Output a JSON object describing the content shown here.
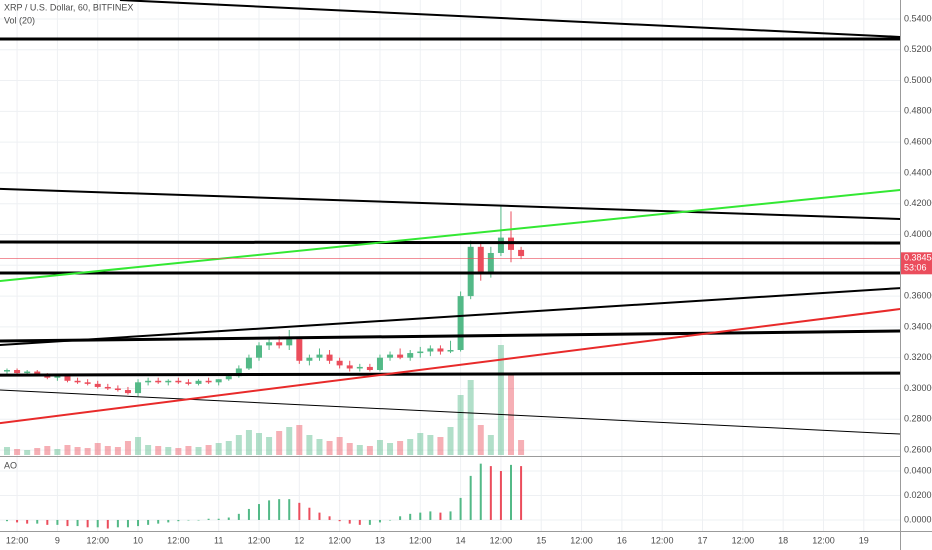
{
  "chart_data": [
    {
      "type": "candlestick",
      "title": "XRP / U.S. Dollar, 60, BITFINEX",
      "categories": [
        null,
        "12:00",
        null,
        null,
        null,
        "9",
        null,
        null,
        null,
        "12:00",
        null,
        null,
        null,
        "10",
        null,
        null,
        null,
        "12:00",
        null,
        null,
        null,
        "11",
        null,
        null,
        null,
        "12:00",
        null,
        null,
        null,
        "12",
        null,
        null,
        null,
        "12:00",
        null,
        null,
        null,
        "13",
        null,
        null,
        null,
        "12:00",
        null,
        null,
        null,
        "14",
        null,
        null,
        null,
        "12:00",
        null,
        null,
        null,
        "15",
        null,
        null,
        null,
        "12:00",
        null,
        null,
        null,
        "16",
        null,
        null,
        null,
        "12:00",
        null,
        null,
        null,
        "17",
        null,
        null,
        null,
        "12:00",
        null,
        null,
        null,
        "18",
        null,
        null,
        null,
        "12:00",
        null,
        null,
        null,
        "19",
        null,
        null
      ],
      "open": [
        0.311,
        0.312,
        0.31,
        0.311,
        0.309,
        0.307,
        0.308,
        0.305,
        0.304,
        0.303,
        0.301,
        0.3,
        0.299,
        0.297,
        0.304,
        0.305,
        0.304,
        0.305,
        0.304,
        0.303,
        0.305,
        0.304,
        0.306,
        0.308,
        0.313,
        0.32,
        0.328,
        0.33,
        0.328,
        0.332,
        0.318,
        0.32,
        0.322,
        0.318,
        0.315,
        0.313,
        0.314,
        0.312,
        0.32,
        0.322,
        0.32,
        0.323,
        0.324,
        0.326,
        0.324,
        0.325,
        0.36,
        0.392,
        0.375,
        0.388,
        0.398,
        0.39,
        null,
        null,
        null,
        null,
        null,
        null,
        null,
        null,
        null,
        null,
        null,
        null,
        null,
        null,
        null,
        null,
        null,
        null,
        null,
        null,
        null,
        null,
        null,
        null,
        null,
        null,
        null,
        null,
        null,
        null,
        null,
        null,
        null,
        null,
        null,
        null
      ],
      "high": [
        0.313,
        0.313,
        0.312,
        0.312,
        0.31,
        0.309,
        0.309,
        0.307,
        0.306,
        0.305,
        0.303,
        0.302,
        0.301,
        0.306,
        0.307,
        0.307,
        0.306,
        0.307,
        0.306,
        0.306,
        0.307,
        0.306,
        0.31,
        0.315,
        0.322,
        0.33,
        0.333,
        0.334,
        0.338,
        0.333,
        0.322,
        0.326,
        0.325,
        0.32,
        0.318,
        0.316,
        0.316,
        0.322,
        0.324,
        0.326,
        0.325,
        0.327,
        0.328,
        0.328,
        0.331,
        0.363,
        0.396,
        0.395,
        0.392,
        0.419,
        0.415,
        0.392,
        null,
        null,
        null,
        null,
        null,
        null,
        null,
        null,
        null,
        null,
        null,
        null,
        null,
        null,
        null,
        null,
        null,
        null,
        null,
        null,
        null,
        null,
        null,
        null,
        null,
        null,
        null,
        null,
        null,
        null,
        null,
        null,
        null,
        null,
        null,
        null
      ],
      "low": [
        0.309,
        0.309,
        0.308,
        0.308,
        0.306,
        0.305,
        0.304,
        0.303,
        0.302,
        0.3,
        0.299,
        0.298,
        0.296,
        0.295,
        0.302,
        0.303,
        0.302,
        0.303,
        0.302,
        0.302,
        0.303,
        0.302,
        0.305,
        0.307,
        0.312,
        0.318,
        0.325,
        0.326,
        0.325,
        0.316,
        0.315,
        0.318,
        0.316,
        0.313,
        0.311,
        0.311,
        0.311,
        0.311,
        0.318,
        0.319,
        0.318,
        0.32,
        0.321,
        0.322,
        0.323,
        0.324,
        0.358,
        0.37,
        0.372,
        0.386,
        0.382,
        0.384,
        null,
        null,
        null,
        null,
        null,
        null,
        null,
        null,
        null,
        null,
        null,
        null,
        null,
        null,
        null,
        null,
        null,
        null,
        null,
        null,
        null,
        null,
        null,
        null,
        null,
        null,
        null,
        null,
        null,
        null,
        null,
        null,
        null,
        null,
        null,
        null
      ],
      "close": [
        0.312,
        0.31,
        0.311,
        0.309,
        0.307,
        0.308,
        0.305,
        0.304,
        0.303,
        0.301,
        0.3,
        0.299,
        0.297,
        0.304,
        0.305,
        0.304,
        0.305,
        0.304,
        0.303,
        0.305,
        0.304,
        0.306,
        0.308,
        0.313,
        0.32,
        0.328,
        0.33,
        0.328,
        0.332,
        0.318,
        0.32,
        0.322,
        0.318,
        0.315,
        0.313,
        0.314,
        0.312,
        0.32,
        0.322,
        0.32,
        0.323,
        0.324,
        0.326,
        0.324,
        0.325,
        0.36,
        0.392,
        0.375,
        0.388,
        0.398,
        0.39,
        0.386,
        null,
        null,
        null,
        null,
        null,
        null,
        null,
        null,
        null,
        null,
        null,
        null,
        null,
        null,
        null,
        null,
        null,
        null,
        null,
        null,
        null,
        null,
        null,
        null,
        null,
        null,
        null,
        null,
        null,
        null,
        null,
        null,
        null,
        null,
        null,
        null
      ],
      "up_color": "#53b987",
      "down_color": "#eb4d5c",
      "ylim": [
        0.2568,
        0.5523
      ],
      "yticks": [
        {
          "value": 0.26,
          "label": "0.26000"
        },
        {
          "value": 0.28,
          "label": "0.28000"
        },
        {
          "value": 0.3,
          "label": "0.30000"
        },
        {
          "value": 0.32,
          "label": "0.32000"
        },
        {
          "value": 0.34,
          "label": "0.34000"
        },
        {
          "value": 0.36,
          "label": "0.36000"
        },
        {
          "value": 0.38,
          "label": "0.38000"
        },
        {
          "value": 0.4,
          "label": "0.40000"
        },
        {
          "value": 0.42,
          "label": "0.42000"
        },
        {
          "value": 0.44,
          "label": "0.44000"
        },
        {
          "value": 0.46,
          "label": "0.46000"
        },
        {
          "value": 0.48,
          "label": "0.48000"
        },
        {
          "value": 0.5,
          "label": "0.50000"
        },
        {
          "value": 0.52,
          "label": "0.52000"
        },
        {
          "value": 0.54,
          "label": "0.54000"
        }
      ],
      "trend_lines": [
        {
          "color": "#000000",
          "width": 2,
          "x": [
            11.2,
            88.6
          ],
          "y": [
            0.5523,
            0.5283
          ]
        },
        {
          "color": "#000000",
          "width": 3,
          "x": [
            -0.7,
            88.6
          ],
          "y": [
            0.527,
            0.527
          ]
        },
        {
          "color": "#000000",
          "width": 2,
          "x": [
            -0.7,
            88.6
          ],
          "y": [
            0.4296,
            0.4101
          ]
        },
        {
          "color": "#000000",
          "width": 3,
          "x": [
            -0.7,
            88.6
          ],
          "y": [
            0.3951,
            0.3945
          ]
        },
        {
          "color": "#000000",
          "width": 3,
          "x": [
            -0.7,
            88.6
          ],
          "y": [
            0.375,
            0.375
          ]
        },
        {
          "color": "#000000",
          "width": 2,
          "x": [
            -0.7,
            88.6
          ],
          "y": [
            0.3282,
            0.3652
          ]
        },
        {
          "color": "#000000",
          "width": 3,
          "x": [
            -0.7,
            88.6
          ],
          "y": [
            0.3308,
            0.3373
          ]
        },
        {
          "color": "#000000",
          "width": 3,
          "x": [
            -0.7,
            88.6
          ],
          "y": [
            0.3087,
            0.31
          ]
        },
        {
          "color": "#000000",
          "width": 1,
          "x": [
            -0.7,
            88.6
          ],
          "y": [
            0.299,
            0.2704
          ]
        },
        {
          "color": "#33e833",
          "width": 2,
          "x": [
            -0.7,
            88.6
          ],
          "y": [
            0.3698,
            0.4289
          ]
        },
        {
          "color": "#e82a2a",
          "width": 2,
          "x": [
            -0.7,
            88.6
          ],
          "y": [
            0.2775,
            0.3516
          ]
        }
      ],
      "last_price": 0.38454,
      "countdown": "53:06"
    },
    {
      "type": "volume",
      "title": "Vol (20)",
      "values": [
        8,
        6,
        5,
        7,
        9,
        6,
        10,
        8,
        7,
        12,
        9,
        8,
        14,
        18,
        10,
        9,
        8,
        7,
        9,
        8,
        10,
        12,
        14,
        20,
        25,
        22,
        18,
        24,
        28,
        30,
        20,
        16,
        14,
        18,
        12,
        10,
        9,
        15,
        12,
        14,
        16,
        22,
        20,
        18,
        28,
        60,
        75,
        30,
        20,
        110,
        80,
        15,
        null,
        null,
        null,
        null,
        null,
        null,
        null,
        null,
        null,
        null,
        null,
        null,
        null,
        null,
        null,
        null,
        null,
        null,
        null,
        null,
        null,
        null,
        null,
        null,
        null,
        null,
        null,
        null,
        null,
        null,
        null,
        null,
        null,
        null,
        null,
        null
      ]
    },
    {
      "type": "oscillator",
      "title": "AO",
      "values": [
        -0.001,
        -0.002,
        -0.003,
        -0.003,
        -0.004,
        -0.004,
        -0.005,
        -0.005,
        -0.006,
        -0.006,
        -0.007,
        -0.006,
        -0.006,
        -0.005,
        -0.004,
        -0.003,
        -0.002,
        -0.001,
        0.0,
        0.0,
        0.001,
        0.001,
        0.002,
        0.005,
        0.009,
        0.013,
        0.016,
        0.017,
        0.017,
        0.014,
        0.01,
        0.006,
        0.003,
        -0.001,
        -0.003,
        -0.004,
        -0.004,
        -0.002,
        0.0,
        0.003,
        0.005,
        0.006,
        0.007,
        0.006,
        0.007,
        0.018,
        0.036,
        0.046,
        0.044,
        0.04,
        0.045,
        0.044,
        null,
        null,
        null,
        null,
        null,
        null,
        null,
        null,
        null,
        null,
        null,
        null,
        null,
        null,
        null,
        null,
        null,
        null,
        null,
        null,
        null,
        null,
        null,
        null,
        null,
        null,
        null,
        null,
        null,
        null,
        null,
        null,
        null,
        null,
        null,
        null
      ],
      "ylim": [
        -0.0082,
        0.0498
      ],
      "yticks": [
        {
          "value": 0.04,
          "label": "0.0400"
        },
        {
          "value": 0.02,
          "label": "0.0200"
        },
        {
          "value": 0,
          "label": "0.0000"
        }
      ]
    }
  ]
}
